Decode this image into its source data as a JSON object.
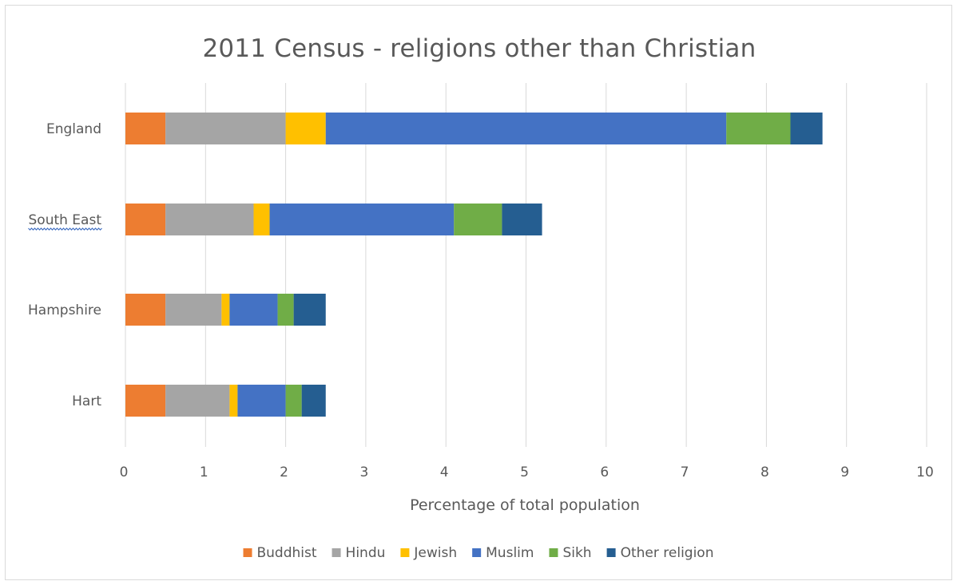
{
  "chart_data": {
    "type": "bar",
    "orientation": "horizontal",
    "stacked": true,
    "title": "2011 Census - religions other than Christian",
    "xlabel": "Percentage of total population",
    "ylabel": "",
    "xlim": [
      0,
      10
    ],
    "x_ticks": [
      "0",
      "1",
      "2",
      "3",
      "4",
      "5",
      "6",
      "7",
      "8",
      "9",
      "10"
    ],
    "grid": true,
    "legend_position": "bottom",
    "categories": [
      "England",
      "South East",
      "Hampshire",
      "Hart"
    ],
    "spellcheck_underlined_category": "South East",
    "series": [
      {
        "name": "Buddhist",
        "color": "#ed7d31",
        "values": [
          0.5,
          0.5,
          0.5,
          0.5
        ]
      },
      {
        "name": "Hindu",
        "color": "#a5a5a5",
        "values": [
          1.5,
          1.1,
          0.7,
          0.8
        ]
      },
      {
        "name": "Jewish",
        "color": "#ffc000",
        "values": [
          0.5,
          0.2,
          0.1,
          0.1
        ]
      },
      {
        "name": "Muslim",
        "color": "#4472c4",
        "values": [
          5.0,
          2.3,
          0.6,
          0.6
        ]
      },
      {
        "name": "Sikh",
        "color": "#70ad47",
        "values": [
          0.8,
          0.6,
          0.2,
          0.2
        ]
      },
      {
        "name": "Other religion",
        "color": "#255e91",
        "values": [
          0.4,
          0.5,
          0.4,
          0.3
        ]
      }
    ]
  }
}
